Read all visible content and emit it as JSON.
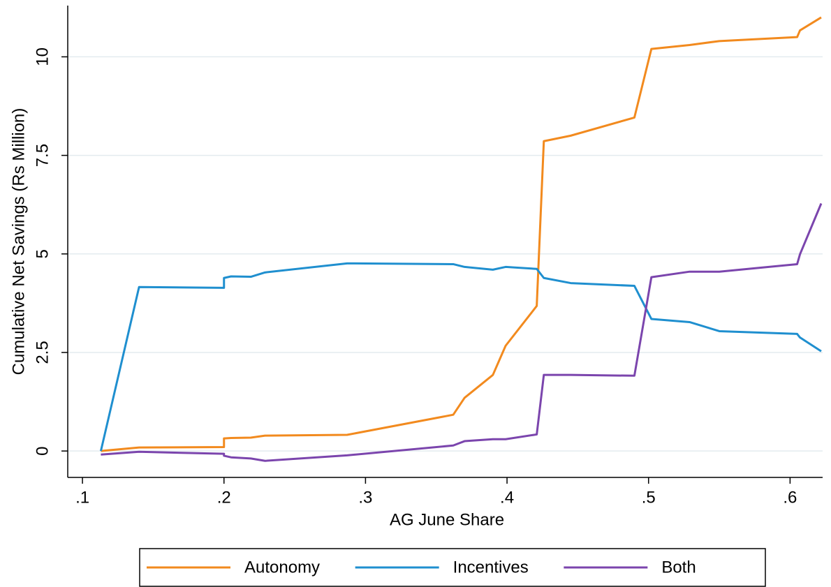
{
  "chart_data": {
    "type": "line",
    "x_label": "AG June Share",
    "y_label": "Cumulative Net Savings (Rs Million)",
    "x": [
      0.113,
      0.14,
      0.2,
      0.2,
      0.205,
      0.219,
      0.229,
      0.287,
      0.362,
      0.37,
      0.39,
      0.399,
      0.421,
      0.426,
      0.445,
      0.49,
      0.502,
      0.529,
      0.55,
      0.605,
      0.607,
      0.622
    ],
    "series": [
      {
        "name": "Autonomy",
        "color": "#f28a1e",
        "values": [
          0,
          0.09,
          0.1,
          0.32,
          0.33,
          0.34,
          0.39,
          0.41,
          0.92,
          1.35,
          1.93,
          2.67,
          3.68,
          7.86,
          8.0,
          8.46,
          10.2,
          10.3,
          10.4,
          10.5,
          10.67,
          11.0
        ]
      },
      {
        "name": "Incentives",
        "color": "#1f8fcf",
        "values": [
          0,
          4.16,
          4.14,
          4.39,
          4.43,
          4.42,
          4.53,
          4.76,
          4.74,
          4.67,
          4.6,
          4.67,
          4.62,
          4.39,
          4.26,
          4.19,
          3.35,
          3.27,
          3.04,
          2.97,
          2.88,
          2.53
        ]
      },
      {
        "name": "Both",
        "color": "#7b45ad",
        "values": [
          -0.09,
          -0.02,
          -0.07,
          -0.12,
          -0.16,
          -0.19,
          -0.25,
          -0.11,
          0.14,
          0.25,
          0.3,
          0.3,
          0.42,
          1.93,
          1.93,
          1.91,
          4.41,
          4.55,
          4.55,
          4.74,
          4.99,
          6.28
        ]
      }
    ],
    "xlim": [
      0.0896,
      0.623
    ],
    "ylim": [
      -0.67,
      11.3
    ],
    "xticks": [
      {
        "value": 0.1,
        "label": ".1"
      },
      {
        "value": 0.2,
        "label": ".2"
      },
      {
        "value": 0.3,
        "label": ".3"
      },
      {
        "value": 0.4,
        "label": ".4"
      },
      {
        "value": 0.5,
        "label": ".5"
      },
      {
        "value": 0.6,
        "label": ".6"
      }
    ],
    "yticks": [
      0,
      2.5,
      5,
      7.5,
      10
    ],
    "grid": true,
    "legend": "bottom"
  }
}
